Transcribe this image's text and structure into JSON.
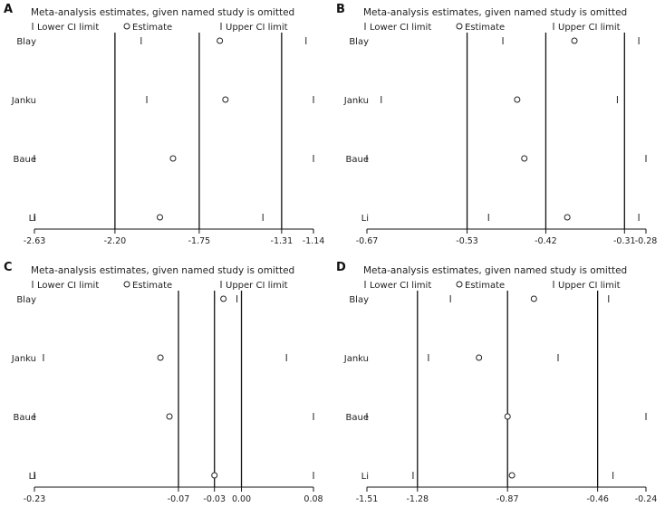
{
  "chart_data": [
    {
      "panel": "A",
      "type": "forest",
      "title": "Meta-analysis estimates, given named study is omitted",
      "legend": [
        "Lower CI limit",
        "Estimate",
        "Upper CI limit"
      ],
      "studies": [
        "Blay",
        "Janku",
        "Baue",
        "Li"
      ],
      "lower": [
        -2.06,
        -2.03,
        -2.63,
        -2.63
      ],
      "estimate": [
        -1.64,
        -1.61,
        -1.89,
        -1.96
      ],
      "upper": [
        -1.18,
        -1.14,
        -1.14,
        -1.41
      ],
      "xlim": [
        -2.63,
        -1.14
      ],
      "tick_values": [
        -2.63,
        -2.2,
        -1.75,
        -1.31,
        -1.14
      ],
      "tick_labels": [
        "-2.63",
        "-2.20",
        "-1.75",
        "-1.31",
        "-1.14"
      ],
      "reference_lines": [
        -2.2,
        -1.75,
        -1.31
      ]
    },
    {
      "panel": "B",
      "type": "forest",
      "title": "Meta-analysis estimates, given named study is omitted",
      "legend": [
        "Lower CI limit",
        "Estimate",
        "Upper CI limit"
      ],
      "studies": [
        "Blay",
        "Janku",
        "Baue",
        "Li"
      ],
      "lower": [
        -0.48,
        -0.65,
        -0.67,
        -0.5
      ],
      "estimate": [
        -0.38,
        -0.46,
        -0.45,
        -0.39
      ],
      "upper": [
        -0.29,
        -0.32,
        -0.28,
        -0.29
      ],
      "xlim": [
        -0.67,
        -0.28
      ],
      "tick_values": [
        -0.67,
        -0.53,
        -0.42,
        -0.31,
        -0.28
      ],
      "tick_labels": [
        "-0.67",
        "-0.53",
        "-0.42",
        "-0.31",
        "-0.28"
      ],
      "reference_lines": [
        -0.53,
        -0.42,
        -0.31
      ]
    },
    {
      "panel": "C",
      "type": "forest",
      "title": "Meta-analysis estimates, given named study is omitted",
      "legend": [
        "Lower CI limit",
        "Estimate",
        "Upper CI limit"
      ],
      "studies": [
        "Blay",
        "Janku",
        "Baue",
        "Li"
      ],
      "lower": [
        -0.03,
        -0.22,
        -0.23,
        -0.23
      ],
      "estimate": [
        -0.02,
        -0.09,
        -0.08,
        -0.03
      ],
      "upper": [
        -0.005,
        0.05,
        0.08,
        0.08
      ],
      "xlim": [
        -0.23,
        0.08
      ],
      "tick_values": [
        -0.23,
        -0.07,
        -0.03,
        0.0,
        0.08
      ],
      "tick_labels": [
        "-0.23",
        "-0.07",
        "-0.03",
        "0.00",
        "0.08"
      ],
      "reference_lines": [
        -0.07,
        -0.03,
        0.0
      ]
    },
    {
      "panel": "D",
      "type": "forest",
      "title": "Meta-analysis estimates, given named study is omitted",
      "legend": [
        "Lower CI limit",
        "Estimate",
        "Upper CI limit"
      ],
      "studies": [
        "Blay",
        "Janku",
        "Baue",
        "Li"
      ],
      "lower": [
        -1.13,
        -1.23,
        -1.51,
        -1.3
      ],
      "estimate": [
        -0.75,
        -1.0,
        -0.87,
        -0.85
      ],
      "upper": [
        -0.41,
        -0.64,
        -0.24,
        -0.39
      ],
      "xlim": [
        -1.51,
        -0.24
      ],
      "tick_values": [
        -1.51,
        -1.28,
        -0.87,
        -0.46,
        -0.24
      ],
      "tick_labels": [
        "-1.51",
        "-1.28",
        "-0.87",
        "-0.46",
        "-0.24"
      ],
      "reference_lines": [
        -1.28,
        -0.87,
        -0.46
      ]
    }
  ]
}
